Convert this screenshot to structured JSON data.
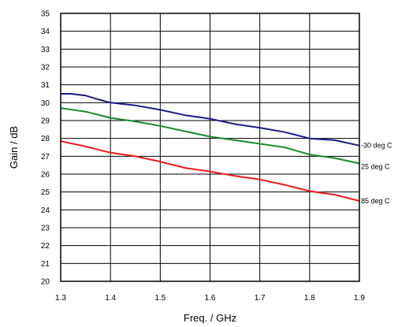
{
  "chart_data": {
    "type": "line",
    "title": "",
    "xlabel": "Freq. / GHz",
    "ylabel": "Gain / dB",
    "xlim": [
      1.3,
      1.9
    ],
    "ylim": [
      20,
      35
    ],
    "xticks": [
      1.3,
      1.4,
      1.5,
      1.6,
      1.7,
      1.8,
      1.9
    ],
    "xtick_labels": [
      "1.3",
      "1.4",
      "1.5",
      "1.6",
      "1.7",
      "1.8",
      "1.9"
    ],
    "yticks": [
      20,
      21,
      22,
      23,
      24,
      25,
      26,
      27,
      28,
      29,
      30,
      31,
      32,
      33,
      34,
      35
    ],
    "ytick_labels": [
      "20",
      "21",
      "22",
      "23",
      "24",
      "25",
      "26",
      "27",
      "28",
      "29",
      "30",
      "31",
      "32",
      "33",
      "34",
      "35"
    ],
    "grid": true,
    "legend": "inline-right",
    "series": [
      {
        "name": "-30 deg C",
        "color": "#1c1c8a",
        "x": [
          1.3,
          1.32,
          1.35,
          1.38,
          1.4,
          1.45,
          1.5,
          1.55,
          1.6,
          1.65,
          1.7,
          1.75,
          1.8,
          1.85,
          1.9
        ],
        "y": [
          30.5,
          30.5,
          30.4,
          30.15,
          30.0,
          29.85,
          29.6,
          29.3,
          29.1,
          28.8,
          28.6,
          28.35,
          28.0,
          27.9,
          27.6
        ]
      },
      {
        "name": "25 deg C",
        "color": "#1a8a2e",
        "x": [
          1.3,
          1.35,
          1.4,
          1.45,
          1.5,
          1.55,
          1.6,
          1.65,
          1.7,
          1.75,
          1.8,
          1.85,
          1.9
        ],
        "y": [
          29.7,
          29.5,
          29.15,
          28.95,
          28.7,
          28.4,
          28.1,
          27.9,
          27.7,
          27.5,
          27.1,
          26.9,
          26.6
        ]
      },
      {
        "name": "85 deg C",
        "color": "#ee1c1c",
        "x": [
          1.3,
          1.35,
          1.4,
          1.45,
          1.5,
          1.55,
          1.6,
          1.65,
          1.7,
          1.75,
          1.8,
          1.85,
          1.9
        ],
        "y": [
          27.85,
          27.55,
          27.2,
          27.0,
          26.7,
          26.35,
          26.15,
          25.9,
          25.7,
          25.4,
          25.05,
          24.85,
          24.5
        ]
      }
    ]
  }
}
